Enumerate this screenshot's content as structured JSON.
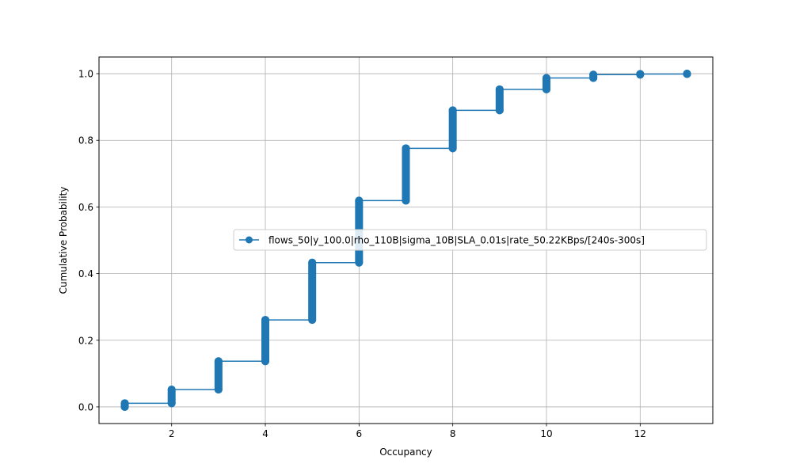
{
  "chart_data": {
    "type": "line",
    "xlabel": "Occupancy",
    "ylabel": "Cumulative Probability",
    "xlim": [
      0.45,
      13.55
    ],
    "ylim": [
      -0.05,
      1.05
    ],
    "xticks": [
      2,
      4,
      6,
      8,
      10,
      12
    ],
    "yticks": [
      0.0,
      0.2,
      0.4,
      0.6,
      0.8,
      1.0
    ],
    "xtick_labels": [
      "2",
      "4",
      "6",
      "8",
      "10",
      "12"
    ],
    "ytick_labels": [
      "0.0",
      "0.2",
      "0.4",
      "0.6",
      "0.8",
      "1.0"
    ],
    "grid": true,
    "legend_position": "center-right",
    "series": [
      {
        "name": "flows_50|y_100.0|rho_110B|sigma_10B|SLA_0.01s|rate_50.22KBps/[240s-300s]",
        "color": "#1f77b4",
        "marker": "circle",
        "steps": [
          {
            "x": 1,
            "y_start": 0.0,
            "y_end": 0.011
          },
          {
            "x": 2,
            "y_start": 0.011,
            "y_end": 0.052
          },
          {
            "x": 3,
            "y_start": 0.052,
            "y_end": 0.137
          },
          {
            "x": 4,
            "y_start": 0.137,
            "y_end": 0.261
          },
          {
            "x": 5,
            "y_start": 0.261,
            "y_end": 0.433
          },
          {
            "x": 6,
            "y_start": 0.433,
            "y_end": 0.619
          },
          {
            "x": 7,
            "y_start": 0.619,
            "y_end": 0.776
          },
          {
            "x": 8,
            "y_start": 0.776,
            "y_end": 0.89
          },
          {
            "x": 9,
            "y_start": 0.89,
            "y_end": 0.953
          },
          {
            "x": 10,
            "y_start": 0.953,
            "y_end": 0.987
          },
          {
            "x": 11,
            "y_start": 0.987,
            "y_end": 0.997
          },
          {
            "x": 12,
            "y_start": 0.997,
            "y_end": 0.999
          },
          {
            "x": 13,
            "y_start": 0.999,
            "y_end": 1.0
          }
        ]
      }
    ]
  }
}
